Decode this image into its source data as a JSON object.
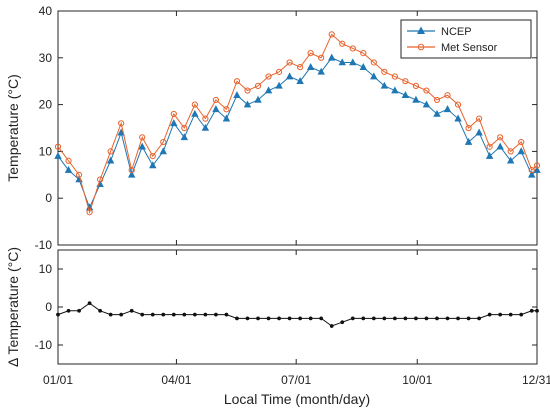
{
  "chart_data": [
    {
      "type": "line",
      "ylabel": "Temperature (°C)",
      "ylim": [
        -10,
        40
      ],
      "yticks": [
        "-10",
        "0",
        "10",
        "20",
        "30",
        "40"
      ],
      "xlim": [
        1,
        365
      ],
      "legend_position": "top-right",
      "series": [
        {
          "name": "NCEP",
          "color": "#1f77b4",
          "marker": "triangle",
          "x": [
            1,
            9,
            17,
            25,
            33,
            41,
            49,
            57,
            65,
            73,
            81,
            89,
            97,
            105,
            113,
            121,
            129,
            137,
            145,
            153,
            161,
            169,
            177,
            185,
            193,
            201,
            209,
            217,
            225,
            233,
            241,
            249,
            257,
            265,
            273,
            281,
            289,
            297,
            305,
            313,
            321,
            329,
            337,
            345,
            353,
            361,
            365
          ],
          "y": [
            9,
            6,
            4,
            -2,
            3,
            8,
            14,
            5,
            11,
            7,
            10,
            16,
            13,
            18,
            15,
            19,
            17,
            22,
            20,
            21,
            23,
            24,
            26,
            25,
            28,
            27,
            30,
            29,
            29,
            28,
            26,
            24,
            23,
            22,
            21,
            20,
            18,
            19,
            17,
            12,
            14,
            9,
            11,
            8,
            10,
            5,
            6
          ]
        },
        {
          "name": "Met Sensor",
          "color": "#e8622c",
          "marker": "circle",
          "x": [
            1,
            9,
            17,
            25,
            33,
            41,
            49,
            57,
            65,
            73,
            81,
            89,
            97,
            105,
            113,
            121,
            129,
            137,
            145,
            153,
            161,
            169,
            177,
            185,
            193,
            201,
            209,
            217,
            225,
            233,
            241,
            249,
            257,
            265,
            273,
            281,
            289,
            297,
            305,
            313,
            321,
            329,
            337,
            345,
            353,
            361,
            365
          ],
          "y": [
            11,
            8,
            5,
            -3,
            4,
            10,
            16,
            6,
            13,
            9,
            12,
            18,
            15,
            20,
            17,
            21,
            19,
            25,
            23,
            24,
            26,
            27,
            29,
            28,
            31,
            30,
            35,
            33,
            32,
            31,
            29,
            27,
            26,
            25,
            24,
            23,
            21,
            22,
            20,
            15,
            17,
            11,
            13,
            10,
            12,
            6,
            7
          ]
        }
      ]
    },
    {
      "type": "line",
      "ylabel": "Δ Temperature (°C)",
      "ylim": [
        -15,
        15
      ],
      "yticks": [
        "-10",
        "0",
        "10"
      ],
      "xlabel": "Local Time (month/day)",
      "xticks": [
        {
          "day": 1,
          "label": "01/01"
        },
        {
          "day": 91,
          "label": "04/01"
        },
        {
          "day": 182,
          "label": "07/01"
        },
        {
          "day": 274,
          "label": "10/01"
        },
        {
          "day": 365,
          "label": "12/31"
        }
      ],
      "series": [
        {
          "color": "#111111",
          "marker": "dot",
          "x": [
            1,
            9,
            17,
            25,
            33,
            41,
            49,
            57,
            65,
            73,
            81,
            89,
            97,
            105,
            113,
            121,
            129,
            137,
            145,
            153,
            161,
            169,
            177,
            185,
            193,
            201,
            209,
            217,
            225,
            233,
            241,
            249,
            257,
            265,
            273,
            281,
            289,
            297,
            305,
            313,
            321,
            329,
            337,
            345,
            353,
            361,
            365
          ],
          "y": [
            -2,
            -1,
            -1,
            1,
            -1,
            -2,
            -2,
            -1,
            -2,
            -2,
            -2,
            -2,
            -2,
            -2,
            -2,
            -2,
            -2,
            -3,
            -3,
            -3,
            -3,
            -3,
            -3,
            -3,
            -3,
            -3,
            -5,
            -4,
            -3,
            -3,
            -3,
            -3,
            -3,
            -3,
            -3,
            -3,
            -3,
            -3,
            -3,
            -3,
            -3,
            -2,
            -2,
            -2,
            -2,
            -1,
            -1
          ]
        }
      ]
    }
  ]
}
